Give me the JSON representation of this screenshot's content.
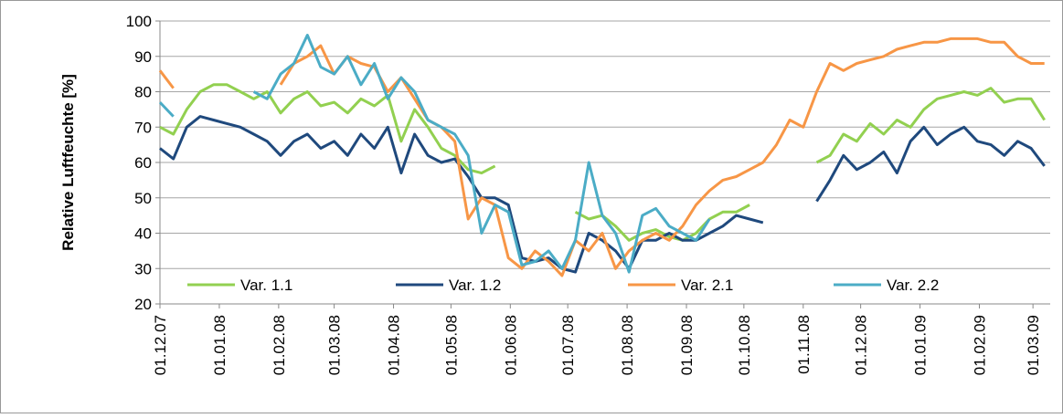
{
  "chart_data": {
    "type": "line",
    "y_label": "Relative Luftfeuchte [%]",
    "x": [
      "2007-12-01",
      "2007-12-08",
      "2007-12-15",
      "2007-12-22",
      "2007-12-29",
      "2008-01-05",
      "2008-01-12",
      "2008-01-19",
      "2008-01-26",
      "2008-02-02",
      "2008-02-09",
      "2008-02-16",
      "2008-02-23",
      "2008-03-01",
      "2008-03-08",
      "2008-03-15",
      "2008-03-22",
      "2008-03-29",
      "2008-04-05",
      "2008-04-12",
      "2008-04-19",
      "2008-04-26",
      "2008-05-03",
      "2008-05-10",
      "2008-05-17",
      "2008-05-24",
      "2008-05-31",
      "2008-06-07",
      "2008-06-14",
      "2008-06-21",
      "2008-06-28",
      "2008-07-05",
      "2008-07-12",
      "2008-07-19",
      "2008-07-26",
      "2008-08-02",
      "2008-08-09",
      "2008-08-16",
      "2008-08-23",
      "2008-08-30",
      "2008-09-06",
      "2008-09-13",
      "2008-09-20",
      "2008-09-27",
      "2008-10-04",
      "2008-10-11",
      "2008-10-18",
      "2008-10-25",
      "2008-11-01",
      "2008-11-08",
      "2008-11-15",
      "2008-11-22",
      "2008-11-29",
      "2008-12-06",
      "2008-12-13",
      "2008-12-20",
      "2008-12-27",
      "2009-01-03",
      "2009-01-10",
      "2009-01-17",
      "2009-01-24",
      "2009-01-31",
      "2009-02-07",
      "2009-02-14",
      "2009-02-21",
      "2009-02-28",
      "2009-03-07"
    ],
    "series": [
      {
        "name": "Var. 1.1",
        "color": "#92d050",
        "values": [
          70,
          68,
          75,
          80,
          82,
          82,
          80,
          78,
          80,
          74,
          78,
          80,
          76,
          77,
          74,
          78,
          76,
          79,
          66,
          75,
          70,
          64,
          62,
          58,
          57,
          59,
          null,
          null,
          null,
          null,
          null,
          46,
          44,
          45,
          42,
          38,
          40,
          41,
          39,
          38,
          40,
          44,
          46,
          46,
          48,
          null,
          null,
          null,
          null,
          60,
          62,
          68,
          66,
          71,
          68,
          72,
          70,
          75,
          78,
          79,
          80,
          79,
          81,
          77,
          78,
          78,
          72
        ]
      },
      {
        "name": "Var. 1.2",
        "color": "#1f497d",
        "values": [
          64,
          61,
          70,
          73,
          72,
          71,
          70,
          68,
          66,
          62,
          66,
          68,
          64,
          66,
          62,
          68,
          64,
          70,
          57,
          68,
          62,
          60,
          61,
          56,
          50,
          50,
          48,
          33,
          32,
          33,
          30,
          29,
          40,
          38,
          35,
          30,
          38,
          38,
          40,
          38,
          38,
          40,
          42,
          45,
          44,
          43,
          null,
          null,
          null,
          49,
          55,
          62,
          58,
          60,
          63,
          57,
          66,
          70,
          65,
          68,
          70,
          66,
          65,
          62,
          66,
          64,
          59
        ]
      },
      {
        "name": "Var. 2.1",
        "color": "#f79646",
        "values": [
          86,
          81,
          null,
          null,
          null,
          null,
          null,
          null,
          null,
          82,
          88,
          90,
          93,
          85,
          90,
          88,
          87,
          80,
          84,
          78,
          72,
          70,
          66,
          44,
          50,
          48,
          33,
          30,
          35,
          32,
          28,
          38,
          35,
          40,
          30,
          35,
          38,
          40,
          38,
          42,
          48,
          52,
          55,
          56,
          58,
          60,
          65,
          72,
          70,
          80,
          88,
          86,
          88,
          89,
          90,
          92,
          93,
          94,
          94,
          95,
          95,
          95,
          94,
          94,
          90,
          88,
          88
        ]
      },
      {
        "name": "Var. 2.2",
        "color": "#4bacc6",
        "values": [
          77,
          73,
          null,
          null,
          null,
          null,
          null,
          80,
          78,
          85,
          88,
          96,
          87,
          85,
          90,
          82,
          88,
          78,
          84,
          80,
          72,
          70,
          68,
          62,
          40,
          48,
          46,
          31,
          32,
          35,
          30,
          38,
          60,
          45,
          40,
          29,
          45,
          47,
          42,
          40,
          38,
          44,
          null,
          null,
          null,
          null,
          null,
          null,
          null,
          null,
          null,
          null,
          null,
          null,
          null,
          null,
          null,
          null,
          null,
          null,
          null,
          null,
          null,
          null,
          null,
          null,
          null
        ]
      }
    ],
    "xlim": [
      "2007-12-01",
      "2009-03-10"
    ],
    "xticks": [
      {
        "value": "2007-12-01",
        "label": "01.12.07"
      },
      {
        "value": "2008-01-01",
        "label": "01.01.08"
      },
      {
        "value": "2008-02-01",
        "label": "01.02.08"
      },
      {
        "value": "2008-03-01",
        "label": "01.03.08"
      },
      {
        "value": "2008-04-01",
        "label": "01.04.08"
      },
      {
        "value": "2008-05-01",
        "label": "01.05.08"
      },
      {
        "value": "2008-06-01",
        "label": "01.06.08"
      },
      {
        "value": "2008-07-01",
        "label": "01.07.08"
      },
      {
        "value": "2008-08-01",
        "label": "01.08.08"
      },
      {
        "value": "2008-09-01",
        "label": "01.09.08"
      },
      {
        "value": "2008-10-01",
        "label": "01.10.08"
      },
      {
        "value": "2008-11-01",
        "label": "01.11.08"
      },
      {
        "value": "2008-12-01",
        "label": "01.12.08"
      },
      {
        "value": "2009-01-01",
        "label": "01.01.09"
      },
      {
        "value": "2009-02-01",
        "label": "01.02.09"
      },
      {
        "value": "2009-03-01",
        "label": "01.03.09"
      }
    ],
    "ylim": [
      20,
      100
    ],
    "yticks": [
      20,
      30,
      40,
      50,
      60,
      70,
      80,
      90,
      100
    ],
    "grid": true,
    "legend": "bottom"
  }
}
